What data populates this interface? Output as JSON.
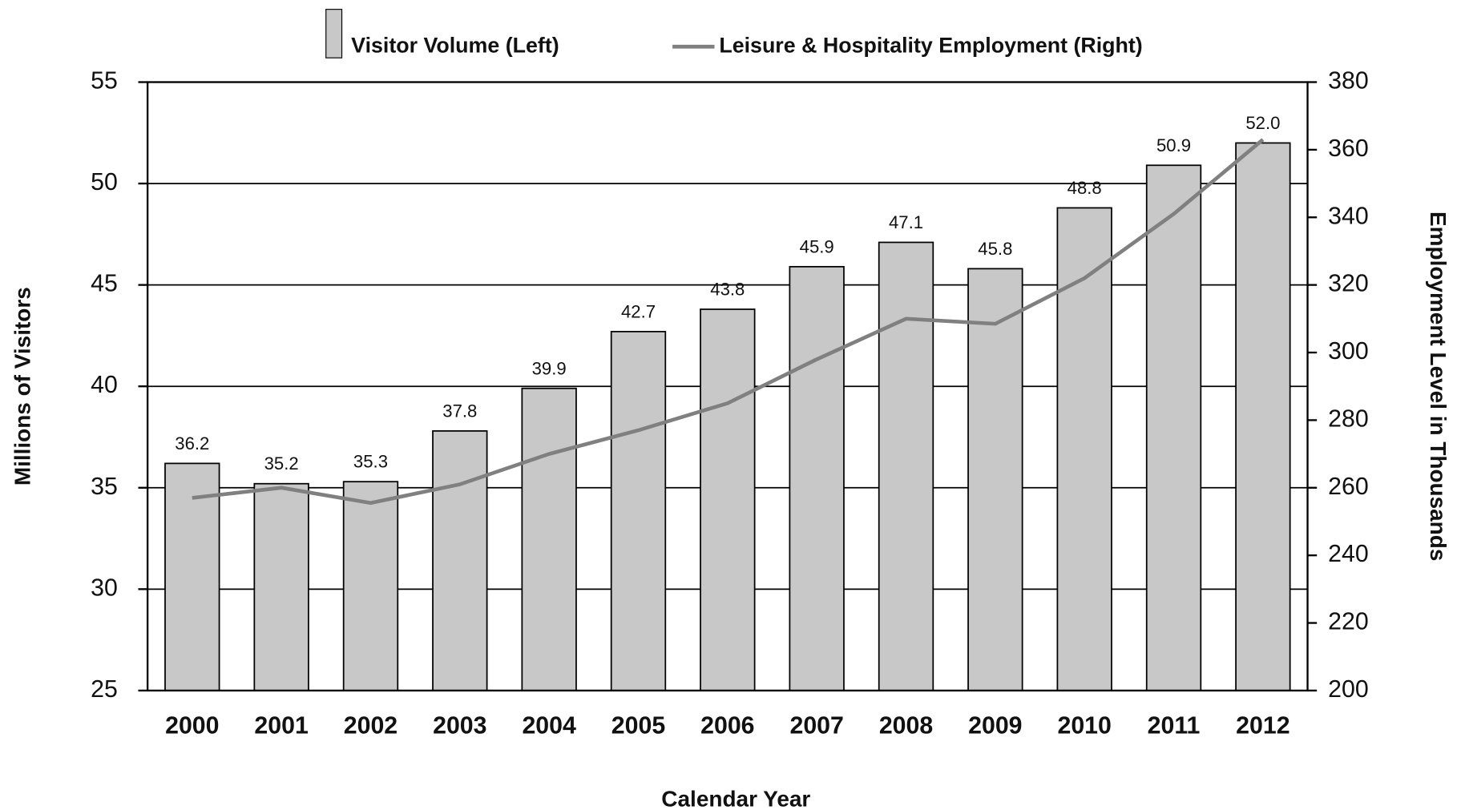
{
  "chart_data": {
    "type": "bar",
    "x_label": "Calendar Year",
    "y_label": "Millions of Visitors",
    "y2_label": "Employment Level in Thousands",
    "categories": [
      "2000",
      "2001",
      "2002",
      "2003",
      "2004",
      "2005",
      "2006",
      "2007",
      "2008",
      "2009",
      "2010",
      "2011",
      "2012"
    ],
    "series": [
      {
        "name": "Visitor Volume (Left)",
        "type": "bar",
        "color": "#c8c8c8",
        "values": [
          36.2,
          35.2,
          35.3,
          37.8,
          39.9,
          42.7,
          43.8,
          45.9,
          47.1,
          45.8,
          48.8,
          50.9,
          52.0
        ],
        "value_labels": [
          "36.2",
          "35.2",
          "35.3",
          "37.8",
          "39.9",
          "42.7",
          "43.8",
          "45.9",
          "47.1",
          "45.8",
          "48.8",
          "50.9",
          "52.0"
        ]
      },
      {
        "name": "Leisure & Hospitality Employment (Right)",
        "type": "line",
        "color": "#808080",
        "axis": "y2",
        "values": [
          257,
          260,
          255.5,
          261,
          270,
          277,
          285,
          298,
          310,
          308.5,
          322,
          341,
          363
        ]
      }
    ],
    "ylim": [
      25,
      55
    ],
    "yticks": [
      25,
      30,
      35,
      40,
      45,
      50,
      55
    ],
    "y2lim": [
      200,
      380
    ],
    "y2ticks": [
      200,
      220,
      240,
      260,
      280,
      300,
      320,
      340,
      360,
      380
    ],
    "grid": true,
    "legend": "top"
  }
}
